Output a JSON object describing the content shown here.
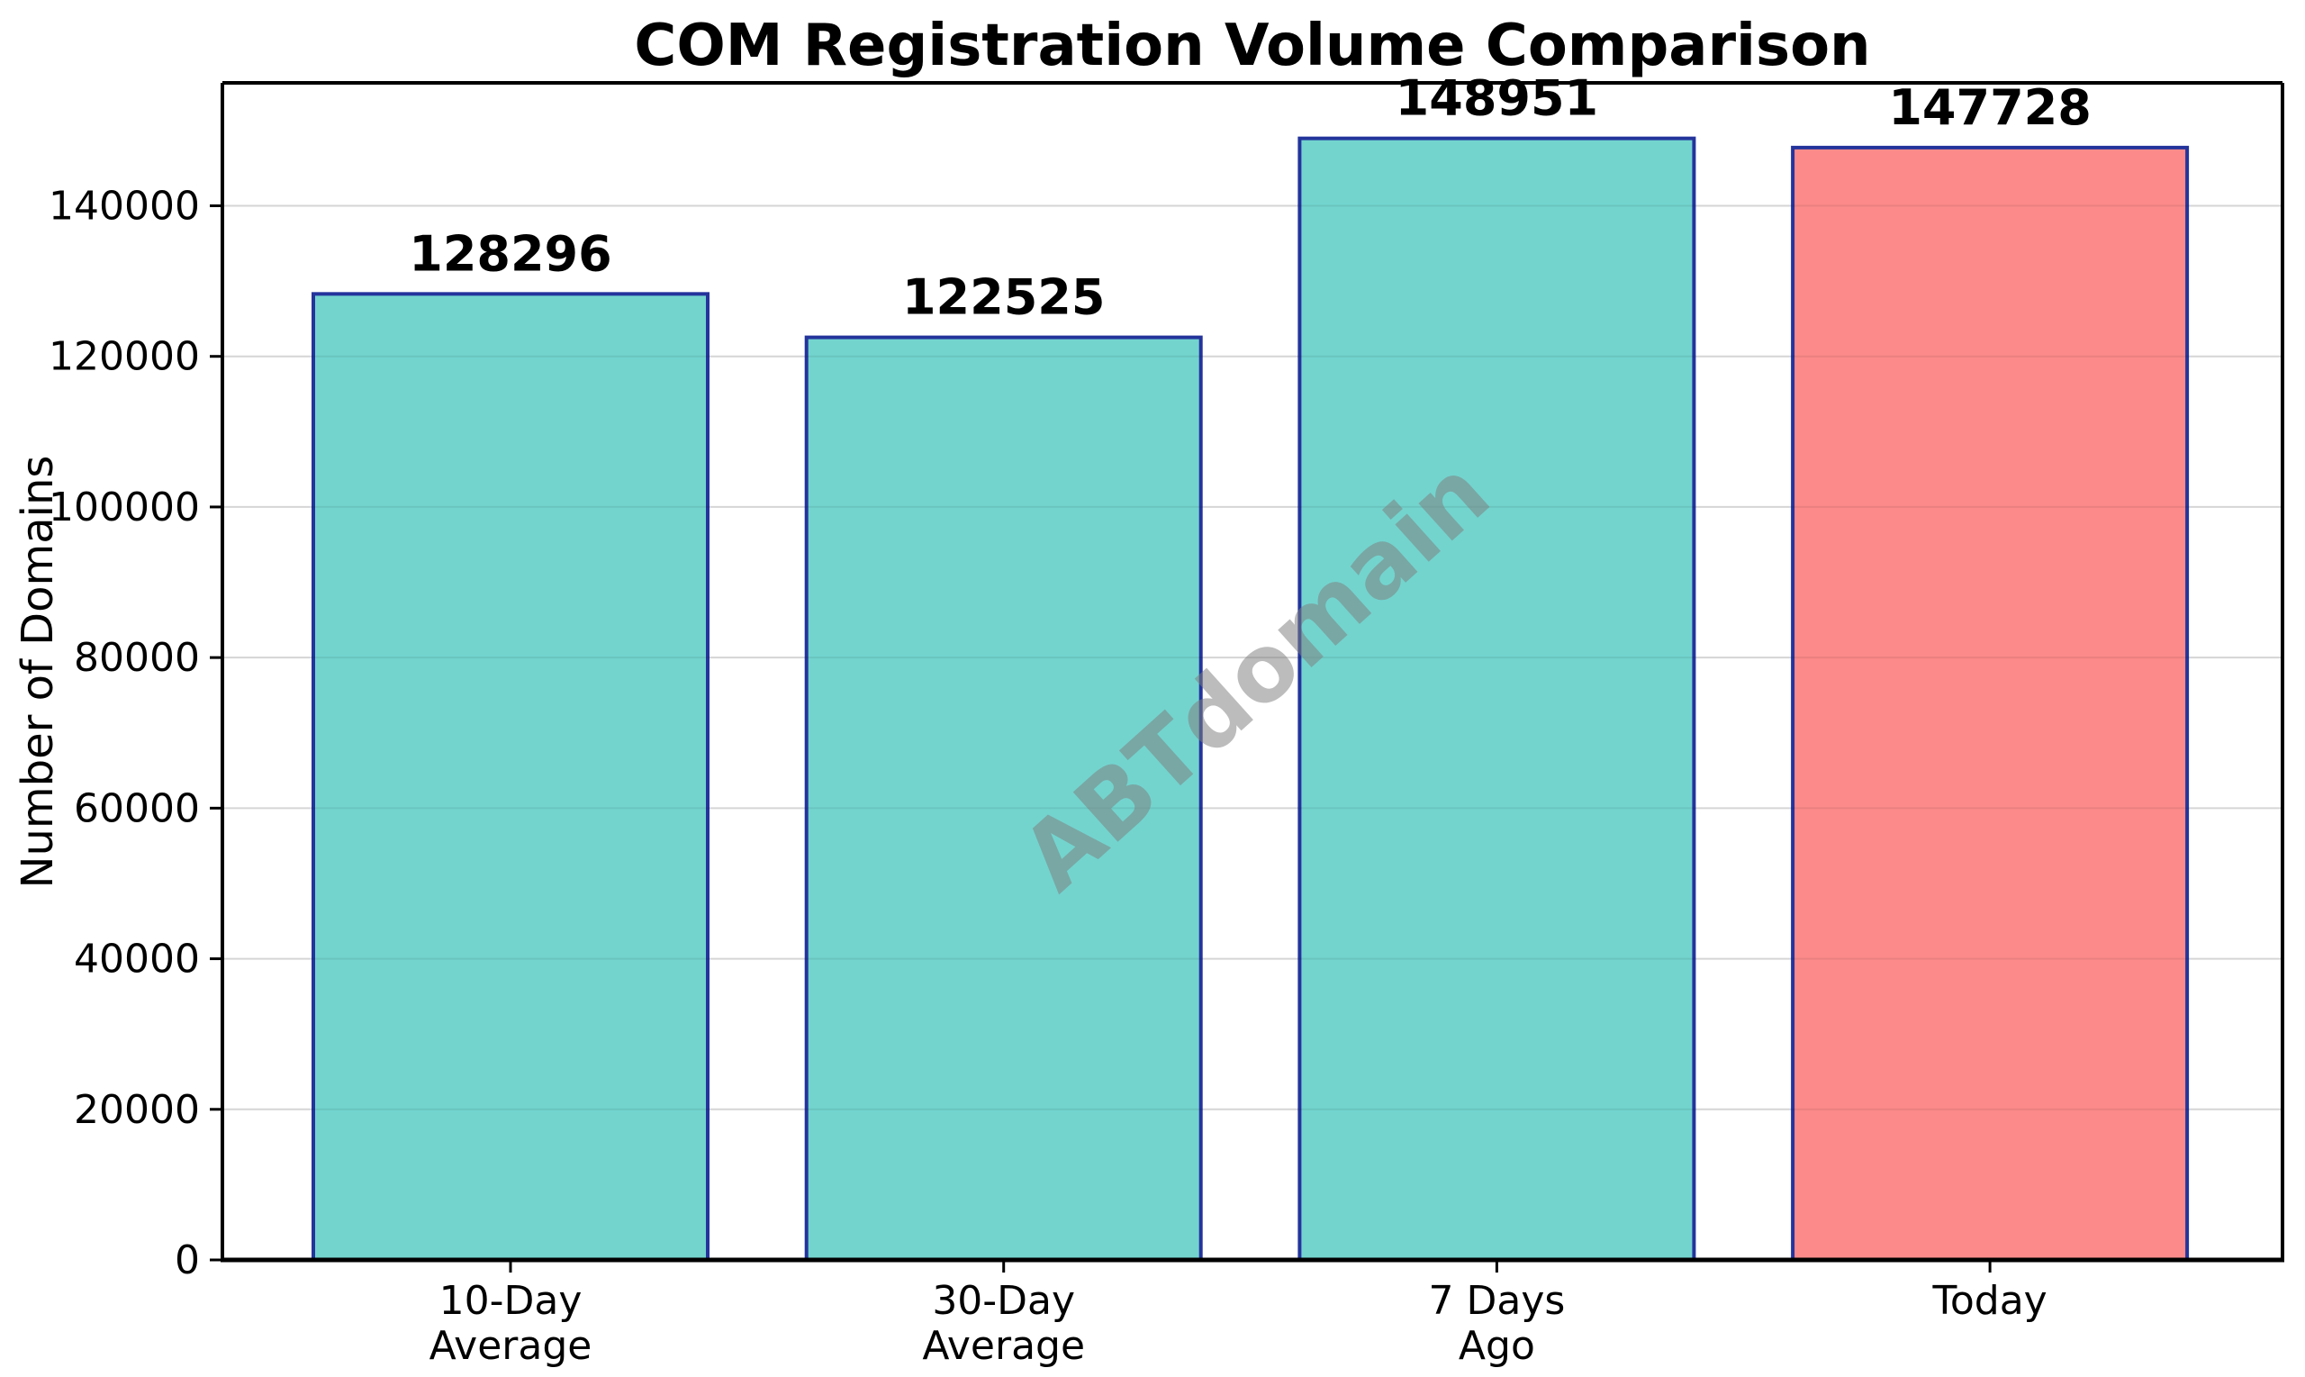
{
  "chart_data": {
    "type": "bar",
    "title": "COM Registration Volume Comparison",
    "xlabel": "",
    "ylabel": "Number of Domains",
    "categories": [
      "10-Day\nAverage",
      "30-Day\nAverage",
      "7 Days\nAgo",
      "Today"
    ],
    "values": [
      128296,
      122525,
      148951,
      147728
    ],
    "value_labels": [
      "128296",
      "122525",
      "148951",
      "147728"
    ],
    "bar_colors": [
      "#73D4CE",
      "#73D4CE",
      "#73D4CE",
      "#FC8A8A"
    ],
    "bar_edge_color": "#24349C",
    "yticks": [
      0,
      20000,
      40000,
      60000,
      80000,
      100000,
      120000,
      140000
    ],
    "ytick_labels": [
      "0",
      "20000",
      "40000",
      "60000",
      "80000",
      "100000",
      "120000",
      "140000"
    ],
    "ylim": [
      0,
      156400
    ],
    "grid": "horizontal",
    "legend": "none",
    "watermark": "ABTdomain",
    "colors": {
      "teal_bar": "#73D4CE",
      "highlight_bar": "#FC8A8A",
      "bar_edge": "#24349C",
      "gridline": "rgba(0,0,0,0.09)",
      "axis": "#000000",
      "background": "#FFFFFF",
      "watermark_gray": "#7F7F7F"
    }
  }
}
